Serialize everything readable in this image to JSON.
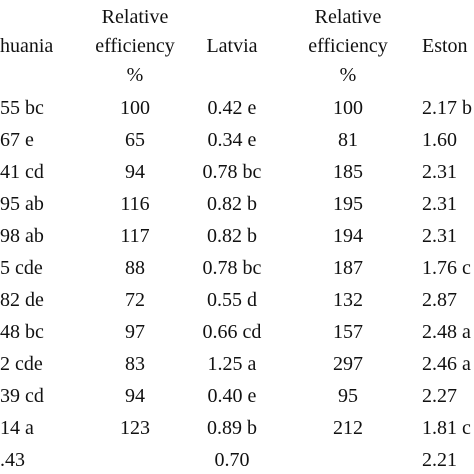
{
  "table": {
    "header": [
      "huania",
      [
        "Relative",
        "efficiency",
        "%"
      ],
      "Latvia",
      [
        "Relative",
        "efficiency",
        "%"
      ],
      "Eston"
    ],
    "rows": [
      [
        "55 bc",
        "100",
        "0.42 e",
        "100",
        "2.17 b"
      ],
      [
        "67 e",
        "65",
        "0.34 e",
        "81",
        "1.60"
      ],
      [
        "41 cd",
        "94",
        "0.78 bc",
        "185",
        "2.31"
      ],
      [
        "95 ab",
        "116",
        "0.82 b",
        "195",
        "2.31"
      ],
      [
        "98 ab",
        "117",
        "0.82 b",
        "194",
        "2.31"
      ],
      [
        "5 cde",
        "88",
        "0.78 bc",
        "187",
        "1.76 c"
      ],
      [
        "82 de",
        "72",
        "0.55 d",
        "132",
        "2.87"
      ],
      [
        "48 bc",
        "97",
        "0.66 cd",
        "157",
        "2.48 a"
      ],
      [
        "2 cde",
        "83",
        "1.25 a",
        "297",
        "2.46 a"
      ],
      [
        "39 cd",
        "94",
        "0.40 e",
        "95",
        "2.27"
      ],
      [
        "14 a",
        "123",
        "0.89 b",
        "212",
        "1.81 c"
      ],
      [
        ".43",
        null,
        "0.70",
        null,
        "2.21"
      ]
    ]
  }
}
